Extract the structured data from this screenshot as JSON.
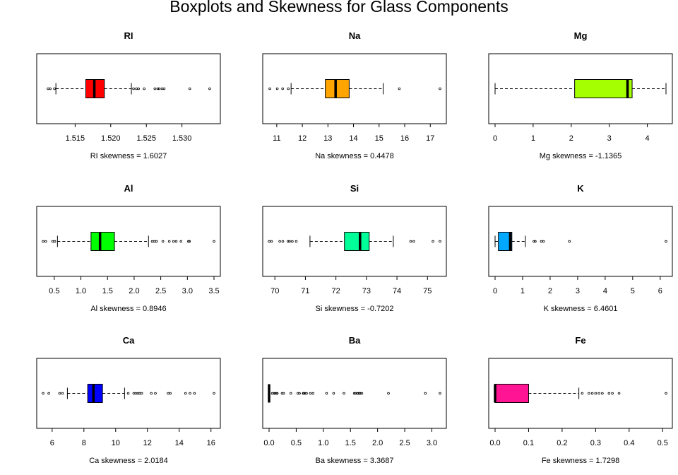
{
  "title": "Boxplots and Skewness for Glass Components",
  "chart_data": [
    {
      "type": "boxplot",
      "title": "RI",
      "xlabel": "RI  skewness =  1.6027",
      "color": "#FF0000",
      "xlim": [
        1.5105,
        1.5345
      ],
      "ticks": [
        "1.515",
        "1.520",
        "1.525",
        "1.530"
      ],
      "stats": {
        "whisker_low": 1.5123,
        "q1": 1.5165,
        "median": 1.5177,
        "q3": 1.5191,
        "whisker_high": 1.5229
      },
      "outliers": [
        1.5112,
        1.5115,
        1.5121,
        1.5232,
        1.5236,
        1.5239,
        1.5247,
        1.5262,
        1.5266,
        1.5268,
        1.5272,
        1.5275,
        1.5311,
        1.5339
      ]
    },
    {
      "type": "boxplot",
      "title": "Na",
      "xlabel": "Na  skewness =  0.4478",
      "color": "#FFA500",
      "xlim": [
        10.7,
        17.38
      ],
      "ticks": [
        "11",
        "12",
        "13",
        "14",
        "15",
        "16",
        "17"
      ],
      "stats": {
        "whisker_low": 11.56,
        "q1": 12.9,
        "median": 13.3,
        "q3": 13.83,
        "whisker_high": 15.16
      },
      "outliers": [
        10.73,
        11.02,
        11.23,
        11.45,
        15.79,
        17.38
      ]
    },
    {
      "type": "boxplot",
      "title": "Mg",
      "xlabel": "Mg  skewness =  -1.1365",
      "color": "#A6FF00",
      "xlim": [
        0,
        4.49
      ],
      "ticks": [
        "0",
        "1",
        "2",
        "3",
        "4"
      ],
      "stats": {
        "whisker_low": 0.0,
        "q1": 2.09,
        "median": 3.48,
        "q3": 3.6,
        "whisker_high": 4.49
      },
      "outliers": []
    },
    {
      "type": "boxplot",
      "title": "Al",
      "xlabel": "Al  skewness =  0.8946",
      "color": "#00FF00",
      "xlim": [
        0.29,
        3.5
      ],
      "ticks": [
        "0.5",
        "1.0",
        "1.5",
        "2.0",
        "2.5",
        "3.0",
        "3.5"
      ],
      "stats": {
        "whisker_low": 0.56,
        "q1": 1.19,
        "median": 1.36,
        "q3": 1.63,
        "whisker_high": 2.27
      },
      "outliers": [
        0.29,
        0.34,
        0.47,
        0.51,
        2.34,
        2.38,
        2.42,
        2.54,
        2.66,
        2.74,
        2.79,
        2.88,
        3.02,
        3.04,
        3.5
      ]
    },
    {
      "type": "boxplot",
      "title": "Si",
      "xlabel": "Si  skewness =  -0.7202",
      "color": "#00FF99",
      "xlim": [
        69.81,
        75.41
      ],
      "ticks": [
        "70",
        "71",
        "72",
        "73",
        "74",
        "75"
      ],
      "stats": {
        "whisker_low": 71.15,
        "q1": 72.28,
        "median": 72.79,
        "q3": 73.09,
        "whisker_high": 73.88
      },
      "outliers": [
        69.81,
        69.89,
        70.16,
        70.26,
        70.43,
        70.48,
        70.57,
        70.7,
        74.45,
        74.55,
        75.18,
        75.41
      ]
    },
    {
      "type": "boxplot",
      "title": "K",
      "xlabel": "K  skewness =  6.4601",
      "color": "#00A8FF",
      "xlim": [
        0,
        6.21
      ],
      "ticks": [
        "0",
        "1",
        "2",
        "3",
        "4",
        "5",
        "6"
      ],
      "stats": {
        "whisker_low": 0.0,
        "q1": 0.12,
        "median": 0.55,
        "q3": 0.61,
        "whisker_high": 1.1
      },
      "outliers": [
        1.41,
        1.46,
        1.68,
        1.76,
        2.7,
        6.21
      ]
    },
    {
      "type": "boxplot",
      "title": "Ca",
      "xlabel": "Ca  skewness =  2.0184",
      "color": "#0000FF",
      "xlim": [
        5.43,
        16.19
      ],
      "ticks": [
        "6",
        "8",
        "10",
        "12",
        "14",
        "16"
      ],
      "stats": {
        "whisker_low": 6.96,
        "q1": 8.24,
        "median": 8.6,
        "q3": 9.17,
        "whisker_high": 10.56
      },
      "outliers": [
        5.43,
        5.79,
        6.47,
        6.65,
        10.79,
        11.14,
        11.27,
        11.41,
        11.52,
        11.64,
        12.24,
        12.5,
        13.3,
        13.44,
        14.4,
        14.68,
        14.96,
        16.19
      ]
    },
    {
      "type": "boxplot",
      "title": "Ba",
      "xlabel": "Ba  skewness =  3.3687",
      "color": "#000000",
      "xlim": [
        0,
        3.15
      ],
      "ticks": [
        "0.0",
        "0.5",
        "1.0",
        "1.5",
        "2.0",
        "2.5",
        "3.0"
      ],
      "stats": {
        "whisker_low": 0.0,
        "q1": 0.0,
        "median": 0.0,
        "q3": 0.0,
        "whisker_high": 0.0
      },
      "outliers": [
        0.06,
        0.09,
        0.11,
        0.14,
        0.15,
        0.24,
        0.27,
        0.4,
        0.53,
        0.56,
        0.63,
        0.64,
        0.66,
        0.69,
        0.76,
        0.81,
        1.06,
        1.19,
        1.38,
        1.57,
        1.59,
        1.63,
        1.64,
        1.67,
        1.68,
        1.71,
        2.2,
        2.88,
        3.15
      ]
    },
    {
      "type": "boxplot",
      "title": "Fe",
      "xlabel": "Fe  skewness =  1.7298",
      "color": "#FF1493",
      "xlim": [
        0,
        0.51
      ],
      "ticks": [
        "0.0",
        "0.1",
        "0.2",
        "0.3",
        "0.4",
        "0.5"
      ],
      "stats": {
        "whisker_low": 0.0,
        "q1": 0.0,
        "median": 0.0,
        "q3": 0.1,
        "whisker_high": 0.25
      },
      "outliers": [
        0.26,
        0.28,
        0.29,
        0.3,
        0.31,
        0.32,
        0.34,
        0.35,
        0.37,
        0.51
      ]
    }
  ]
}
